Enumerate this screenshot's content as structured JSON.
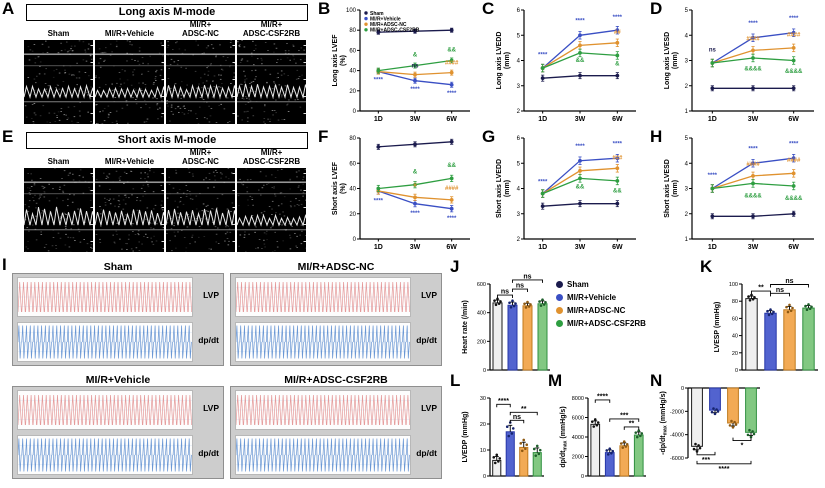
{
  "colors": {
    "sham": "#1b1b4d",
    "vehicle": "#3a4fc4",
    "nc": "#e0922f",
    "csf2rb": "#2e9e41",
    "lvp_trace": "#e59a9a",
    "dpdt_trace": "#6a97d4"
  },
  "bar_colors": {
    "fills": [
      "#efefef",
      "#5263cf",
      "#f2aa55",
      "#82c882"
    ],
    "strokes": [
      "#1a1a1a",
      "#2737a8",
      "#c07a1d",
      "#2f8f3f"
    ],
    "dots": [
      "#111111",
      "#16246e",
      "#8f5a12",
      "#1d5f2a"
    ]
  },
  "groups": [
    {
      "label": "Sham",
      "color_key": "sham"
    },
    {
      "label": "MI/R+Vehicle",
      "color_key": "vehicle"
    },
    {
      "label": "MI/R+ADSC-NC",
      "color_key": "nc"
    },
    {
      "label": "MI/R+ADSC-CSF2RB",
      "color_key": "csf2rb"
    }
  ],
  "panels": {
    "a": {
      "letter": "A",
      "title": "Long axis M-mode",
      "columns": [
        "Sham",
        "MI/R+Vehicle",
        "MI/R+\nADSC-NC",
        "MI/R+\nADSC-CSF2RB"
      ]
    },
    "b": {
      "letter": "B"
    },
    "c": {
      "letter": "C"
    },
    "d": {
      "letter": "D"
    },
    "e": {
      "letter": "E",
      "title": "Short axis M-mode",
      "columns": [
        "Sham",
        "MI/R+Vehicle",
        "MI/R+\nADSC-NC",
        "MI/R+\nADSC-CSF2RB"
      ]
    },
    "f": {
      "letter": "F"
    },
    "g": {
      "letter": "G"
    },
    "h": {
      "letter": "H"
    },
    "i": {
      "letter": "I",
      "cells": [
        "Sham",
        "MI/R+ADSC-NC",
        "MI/R+Vehicle",
        "MI/R+ADSC-CSF2RB"
      ],
      "lvp_label": "LVP",
      "dpdt_label": "dp/dt"
    },
    "j": {
      "letter": "J"
    },
    "k": {
      "letter": "K"
    },
    "l": {
      "letter": "L"
    },
    "m": {
      "letter": "M"
    },
    "n": {
      "letter": "N"
    }
  },
  "chart_data": [
    {
      "panel": "B",
      "type": "line",
      "ylabel": "Long axis LVEF\n(%)",
      "categories": [
        "1D",
        "3W",
        "6W"
      ],
      "ylim": [
        0,
        100
      ],
      "yticks": [
        0,
        20,
        40,
        60,
        80,
        100
      ],
      "show_legend": true,
      "series": [
        {
          "group": 0,
          "values": [
            78,
            79,
            80
          ],
          "err": 2
        },
        {
          "group": 1,
          "values": [
            39,
            30,
            26
          ],
          "err": 2.5
        },
        {
          "group": 2,
          "values": [
            39,
            36,
            38
          ],
          "err": 2.5
        },
        {
          "group": 3,
          "values": [
            40,
            45,
            50
          ],
          "err": 2.5
        }
      ],
      "annotations": [
        {
          "x": 0,
          "y": 29,
          "text": "****",
          "group": 1
        },
        {
          "x": 1,
          "y": 54,
          "text": "&",
          "group": 3
        },
        {
          "x": 1,
          "y": 43,
          "text": "ns",
          "group": 0
        },
        {
          "x": 1,
          "y": 20,
          "text": "****",
          "group": 1
        },
        {
          "x": 2,
          "y": 59,
          "text": "&&",
          "group": 3
        },
        {
          "x": 2,
          "y": 46,
          "text": "####",
          "group": 2
        },
        {
          "x": 2,
          "y": 16,
          "text": "****",
          "group": 1
        }
      ]
    },
    {
      "panel": "C",
      "type": "line",
      "ylabel": "Long axis LVEDD\n(mm)",
      "categories": [
        "1D",
        "3W",
        "6W"
      ],
      "ylim": [
        2,
        6
      ],
      "yticks": [
        2,
        3,
        4,
        5,
        6
      ],
      "series": [
        {
          "group": 0,
          "values": [
            3.3,
            3.4,
            3.4
          ],
          "err": 0.12
        },
        {
          "group": 1,
          "values": [
            3.7,
            5.0,
            5.2
          ],
          "err": 0.15
        },
        {
          "group": 2,
          "values": [
            3.7,
            4.6,
            4.7
          ],
          "err": 0.15
        },
        {
          "group": 3,
          "values": [
            3.7,
            4.3,
            4.2
          ],
          "err": 0.15
        }
      ],
      "annotations": [
        {
          "x": 0,
          "y": 4.15,
          "text": "****",
          "group": 1
        },
        {
          "x": 1,
          "y": 5.5,
          "text": "****",
          "group": 1
        },
        {
          "x": 1,
          "y": 3.95,
          "text": "&&",
          "group": 3
        },
        {
          "x": 2,
          "y": 5.65,
          "text": "****",
          "group": 1
        },
        {
          "x": 2,
          "y": 5.05,
          "text": "##",
          "group": 2
        },
        {
          "x": 2,
          "y": 3.8,
          "text": "&",
          "group": 3
        }
      ]
    },
    {
      "panel": "D",
      "type": "line",
      "ylabel": "Long axis LVESD\n(mm)",
      "categories": [
        "1D",
        "3W",
        "6W"
      ],
      "ylim": [
        1,
        5
      ],
      "yticks": [
        1,
        2,
        3,
        4,
        5
      ],
      "series": [
        {
          "group": 0,
          "values": [
            1.9,
            1.9,
            1.9
          ],
          "err": 0.1
        },
        {
          "group": 1,
          "values": [
            2.9,
            3.9,
            4.1
          ],
          "err": 0.15
        },
        {
          "group": 2,
          "values": [
            2.9,
            3.4,
            3.5
          ],
          "err": 0.15
        },
        {
          "group": 3,
          "values": [
            2.9,
            3.1,
            3.0
          ],
          "err": 0.15
        }
      ],
      "annotations": [
        {
          "x": 0,
          "y": 3.35,
          "text": "ns",
          "group": 0
        },
        {
          "x": 1,
          "y": 4.4,
          "text": "****",
          "group": 1
        },
        {
          "x": 1,
          "y": 3.8,
          "text": "####",
          "group": 2
        },
        {
          "x": 1,
          "y": 2.6,
          "text": "&&&&",
          "group": 3
        },
        {
          "x": 2,
          "y": 4.6,
          "text": "****",
          "group": 1
        },
        {
          "x": 2,
          "y": 3.95,
          "text": "####",
          "group": 2
        },
        {
          "x": 2,
          "y": 2.5,
          "text": "&&&&",
          "group": 3
        }
      ]
    },
    {
      "panel": "F",
      "type": "line",
      "ylabel": "Short axis LVEF\n(%)",
      "categories": [
        "1D",
        "3W",
        "6W"
      ],
      "ylim": [
        0,
        80
      ],
      "yticks": [
        0,
        20,
        40,
        60,
        80
      ],
      "series": [
        {
          "group": 0,
          "values": [
            73,
            75,
            77
          ],
          "err": 2
        },
        {
          "group": 1,
          "values": [
            38,
            28,
            24
          ],
          "err": 2.5
        },
        {
          "group": 2,
          "values": [
            38,
            33,
            31
          ],
          "err": 2.5
        },
        {
          "group": 3,
          "values": [
            40,
            43,
            48
          ],
          "err": 2.5
        }
      ],
      "annotations": [
        {
          "x": 0,
          "y": 29,
          "text": "****",
          "group": 1
        },
        {
          "x": 1,
          "y": 52,
          "text": "&",
          "group": 3
        },
        {
          "x": 1,
          "y": 41,
          "text": "#",
          "group": 2
        },
        {
          "x": 1,
          "y": 19,
          "text": "****",
          "group": 1
        },
        {
          "x": 2,
          "y": 57,
          "text": "&&",
          "group": 3
        },
        {
          "x": 2,
          "y": 39,
          "text": "####",
          "group": 2
        },
        {
          "x": 2,
          "y": 15,
          "text": "****",
          "group": 1
        }
      ]
    },
    {
      "panel": "G",
      "type": "line",
      "ylabel": "Short axis LVEDD\n(mm)",
      "categories": [
        "1D",
        "3W",
        "6W"
      ],
      "ylim": [
        2,
        6
      ],
      "yticks": [
        2,
        3,
        4,
        5,
        6
      ],
      "series": [
        {
          "group": 0,
          "values": [
            3.3,
            3.4,
            3.4
          ],
          "err": 0.12
        },
        {
          "group": 1,
          "values": [
            3.8,
            5.1,
            5.2
          ],
          "err": 0.15
        },
        {
          "group": 2,
          "values": [
            3.8,
            4.7,
            4.8
          ],
          "err": 0.15
        },
        {
          "group": 3,
          "values": [
            3.8,
            4.4,
            4.3
          ],
          "err": 0.15
        }
      ],
      "annotations": [
        {
          "x": 0,
          "y": 4.2,
          "text": "****",
          "group": 1
        },
        {
          "x": 1,
          "y": 5.6,
          "text": "****",
          "group": 1
        },
        {
          "x": 1,
          "y": 4.0,
          "text": "&&",
          "group": 3
        },
        {
          "x": 2,
          "y": 5.7,
          "text": "****",
          "group": 1
        },
        {
          "x": 2,
          "y": 5.15,
          "text": "###",
          "group": 2
        },
        {
          "x": 2,
          "y": 3.85,
          "text": "&&",
          "group": 3
        }
      ]
    },
    {
      "panel": "H",
      "type": "line",
      "ylabel": "Short axis LVESD\n(mm)",
      "categories": [
        "1D",
        "3W",
        "6W"
      ],
      "ylim": [
        1,
        5
      ],
      "yticks": [
        1,
        2,
        3,
        4,
        5
      ],
      "series": [
        {
          "group": 0,
          "values": [
            1.9,
            1.9,
            2.0
          ],
          "err": 0.1
        },
        {
          "group": 1,
          "values": [
            3.0,
            4.0,
            4.2
          ],
          "err": 0.15
        },
        {
          "group": 2,
          "values": [
            3.0,
            3.5,
            3.6
          ],
          "err": 0.15
        },
        {
          "group": 3,
          "values": [
            3.0,
            3.2,
            3.1
          ],
          "err": 0.15
        }
      ],
      "annotations": [
        {
          "x": 0,
          "y": 3.45,
          "text": "****",
          "group": 1
        },
        {
          "x": 1,
          "y": 4.5,
          "text": "****",
          "group": 1
        },
        {
          "x": 1,
          "y": 3.9,
          "text": "####",
          "group": 2
        },
        {
          "x": 1,
          "y": 2.65,
          "text": "&&&&",
          "group": 3
        },
        {
          "x": 2,
          "y": 4.7,
          "text": "****",
          "group": 1
        },
        {
          "x": 2,
          "y": 4.05,
          "text": "####",
          "group": 2
        },
        {
          "x": 2,
          "y": 2.55,
          "text": "&&&&",
          "group": 3
        }
      ]
    },
    {
      "panel": "J",
      "type": "bar",
      "ylabel": "Heart rate (/min)",
      "ylim": [
        0,
        600
      ],
      "yticks": [
        0,
        200,
        400,
        600
      ],
      "values": [
        468,
        452,
        448,
        462
      ],
      "errs": [
        20,
        22,
        18,
        20
      ],
      "brackets": [
        {
          "from": 0,
          "to": 1,
          "text": "ns",
          "level": 0
        },
        {
          "from": 1,
          "to": 2,
          "text": "ns",
          "level": 1
        },
        {
          "from": 1,
          "to": 3,
          "text": "ns",
          "level": 2
        }
      ]
    },
    {
      "panel": "K",
      "type": "bar",
      "ylabel": "LVESP (mmHg)",
      "ylim": [
        0,
        100
      ],
      "yticks": [
        0,
        20,
        40,
        60,
        80,
        100
      ],
      "values": [
        83,
        66,
        70,
        72
      ],
      "errs": [
        3,
        3,
        4,
        3
      ],
      "brackets": [
        {
          "from": 0,
          "to": 1,
          "text": "**",
          "level": 0
        },
        {
          "from": 1,
          "to": 2,
          "text": "ns",
          "level": 1
        },
        {
          "from": 1,
          "to": 3,
          "text": "ns",
          "level": 2
        }
      ]
    },
    {
      "panel": "L",
      "type": "bar",
      "ylabel": "LVEDP (mmHg)",
      "ylim": [
        0,
        30
      ],
      "yticks": [
        0,
        10,
        20,
        30
      ],
      "values": [
        6,
        17,
        11,
        9
      ],
      "errs": [
        1.5,
        2.5,
        2,
        1.8
      ],
      "brackets": [
        {
          "from": 1,
          "to": 2,
          "text": "ns",
          "level": 0
        },
        {
          "from": 1,
          "to": 3,
          "text": "**",
          "level": 1
        },
        {
          "from": 0,
          "to": 1,
          "text": "****",
          "level": 2
        }
      ]
    },
    {
      "panel": "M",
      "type": "bar",
      "ylabel": "dp/dt~max~ (mmHg/s)",
      "ylim": [
        0,
        8000
      ],
      "yticks": [
        0,
        2000,
        4000,
        6000,
        8000
      ],
      "values": [
        5300,
        2400,
        3100,
        4200
      ],
      "errs": [
        350,
        280,
        300,
        320
      ],
      "brackets": [
        {
          "from": 2,
          "to": 3,
          "text": "**",
          "level": 0
        },
        {
          "from": 1,
          "to": 3,
          "text": "***",
          "level": 1
        },
        {
          "from": 0,
          "to": 1,
          "text": "****",
          "level": 2
        }
      ]
    },
    {
      "panel": "N",
      "type": "bar",
      "negative": true,
      "ylabel": "-dp/dt~max~ (mmHg/s)",
      "ylim": [
        -6000,
        0
      ],
      "yticks": [
        0,
        -2000,
        -4000,
        -6000
      ],
      "values": [
        -5000,
        -1900,
        -3000,
        -3800
      ],
      "errs": [
        300,
        220,
        260,
        280
      ],
      "brackets": [
        {
          "from": 0,
          "to": 1,
          "text": "***",
          "level": 0
        },
        {
          "from": 2,
          "to": 3,
          "text": "*",
          "level": 0
        },
        {
          "from": 0,
          "to": 3,
          "text": "****",
          "level": 1
        }
      ]
    }
  ]
}
